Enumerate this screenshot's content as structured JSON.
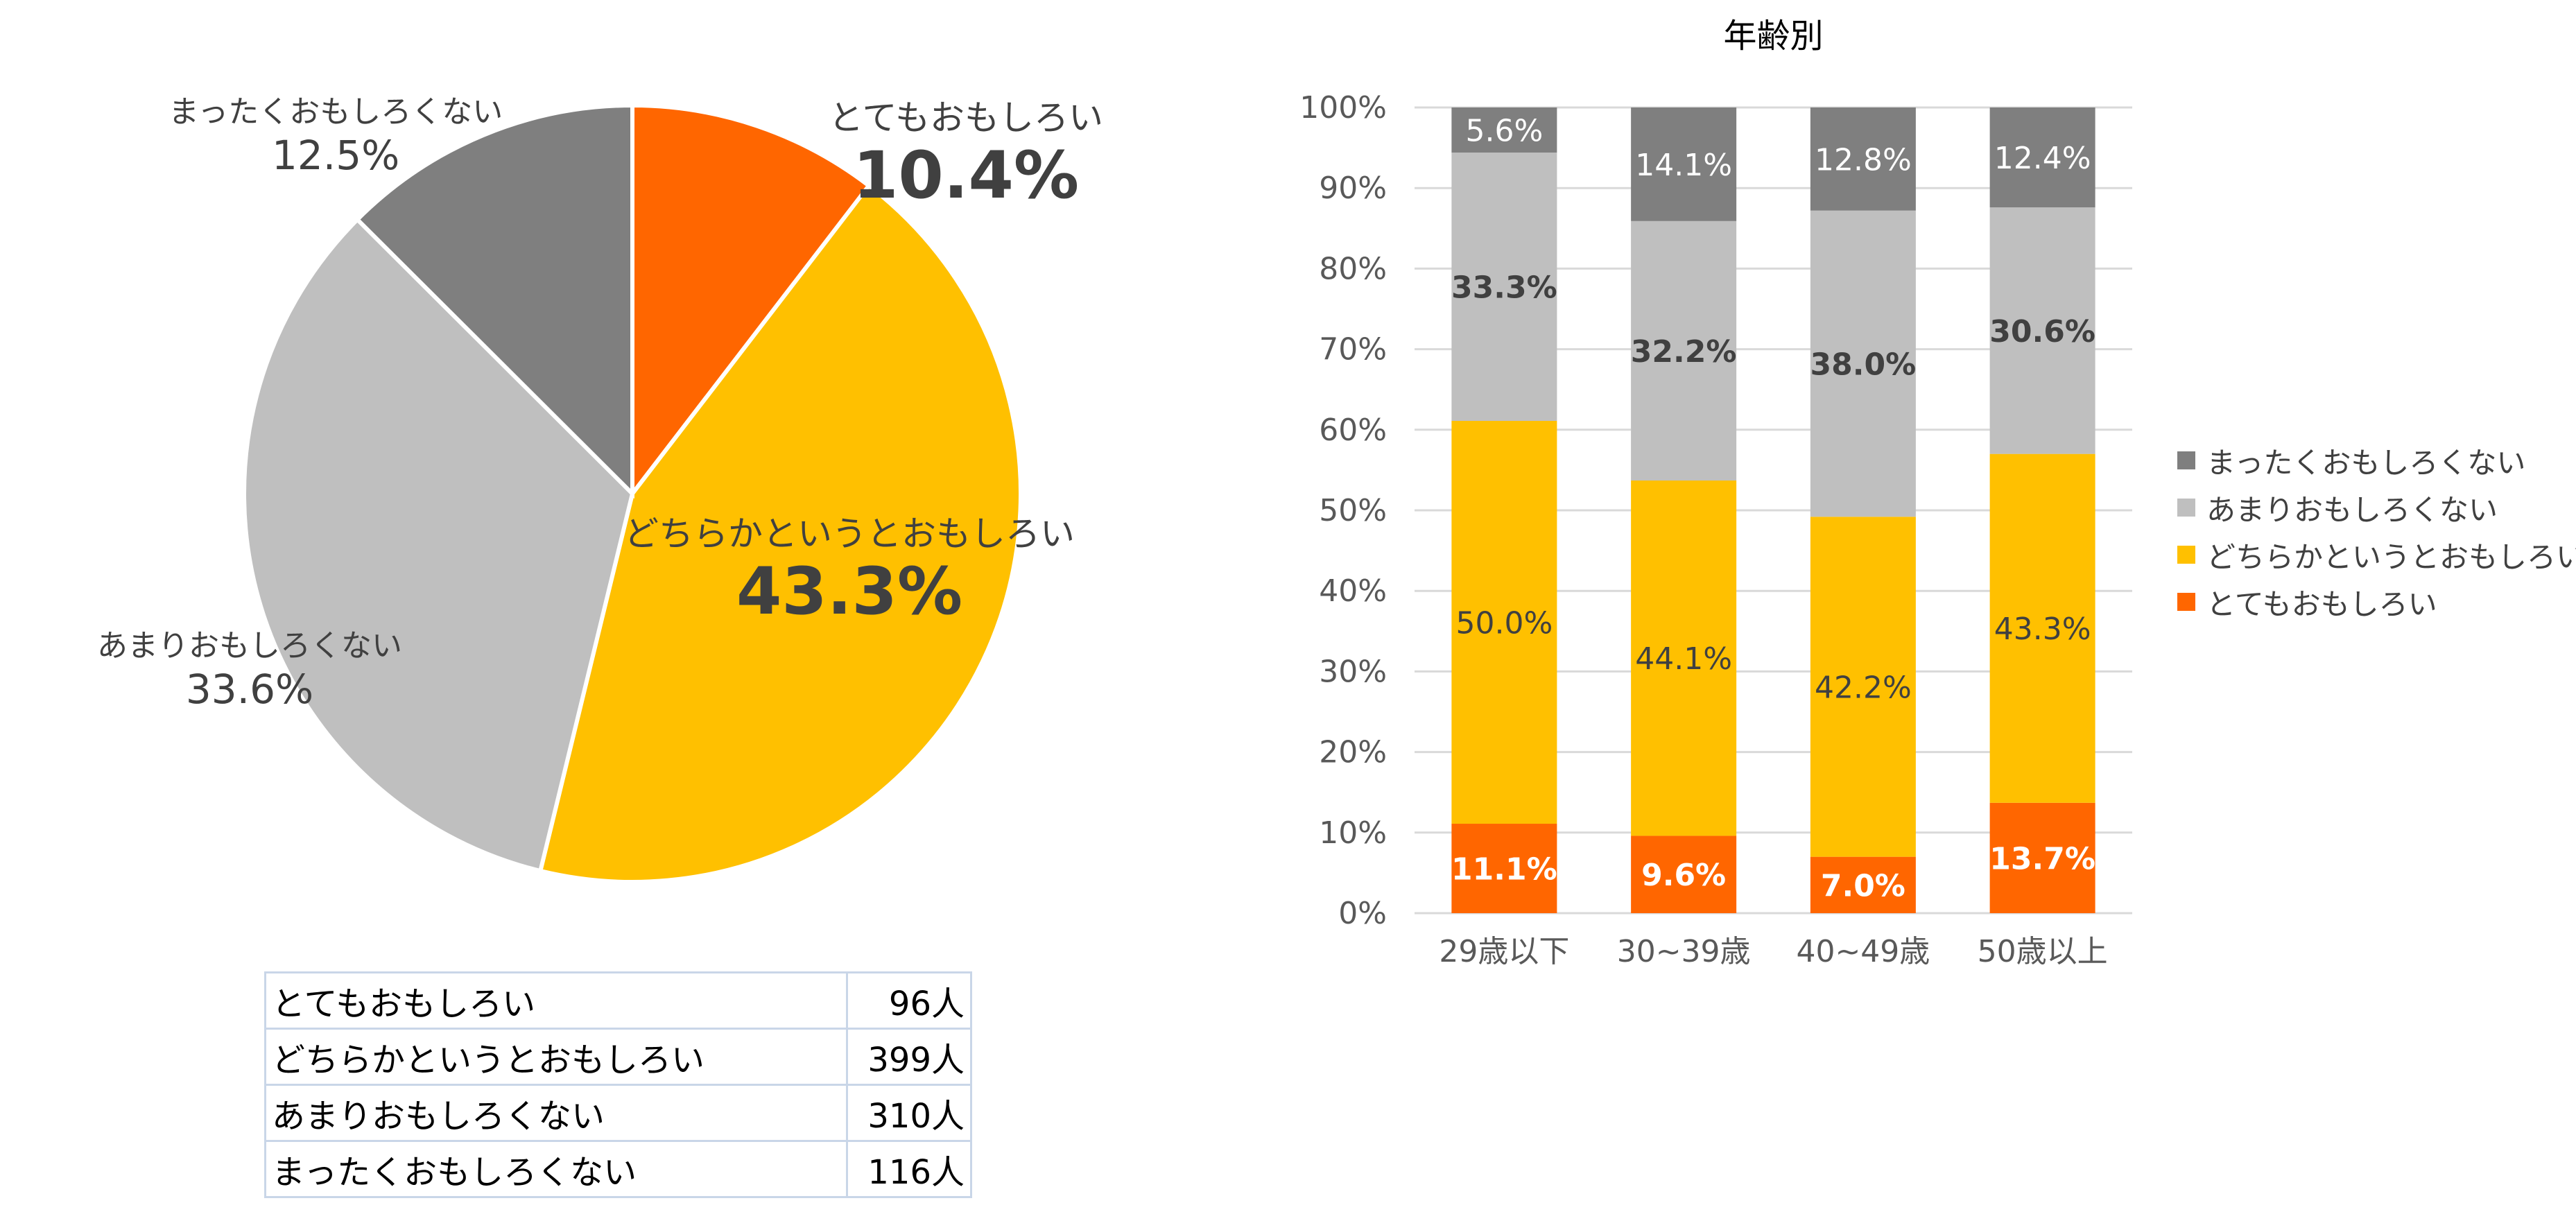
{
  "colors": {
    "very_interesting": "#FF6600",
    "somewhat_interesting": "#FFC000",
    "not_very_interesting": "#BFBFBF",
    "not_interesting_at_all": "#7F7F7F"
  },
  "chart_data": [
    {
      "type": "pie",
      "title": "",
      "slices": [
        {
          "label": "とてもおもしろい",
          "value": 10.4,
          "display": "10.4%",
          "color": "#FF6600"
        },
        {
          "label": "どちらかというとおもしろい",
          "value": 43.3,
          "display": "43.3%",
          "color": "#FFC000"
        },
        {
          "label": "あまりおもしろくない",
          "value": 33.6,
          "display": "33.6%",
          "color": "#BFBFBF"
        },
        {
          "label": "まったくおもしろくない",
          "value": 12.5,
          "display": "12.5%",
          "color": "#7F7F7F"
        }
      ]
    },
    {
      "type": "bar",
      "stacked": true,
      "title": "年齢別",
      "categories": [
        "29歳以下",
        "30~39歳",
        "40~49歳",
        "50歳以上"
      ],
      "ylim": [
        0,
        100
      ],
      "yticks": [
        "0%",
        "10%",
        "20%",
        "30%",
        "40%",
        "50%",
        "60%",
        "70%",
        "80%",
        "90%",
        "100%"
      ],
      "grid": true,
      "legend_position": "right",
      "series": [
        {
          "name": "とてもおもしろい",
          "color": "#FF6600",
          "values": [
            11.1,
            9.6,
            7.0,
            13.7
          ],
          "labels": [
            "11.1%",
            "9.6%",
            "7.0%",
            "13.7%"
          ]
        },
        {
          "name": "どちらかというとおもしろい",
          "color": "#FFC000",
          "values": [
            50.0,
            44.1,
            42.2,
            43.3
          ],
          "labels": [
            "50.0%",
            "44.1%",
            "42.2%",
            "43.3%"
          ]
        },
        {
          "name": "あまりおもしろくない",
          "color": "#BFBFBF",
          "values": [
            33.3,
            32.2,
            38.0,
            30.6
          ],
          "labels": [
            "33.3%",
            "32.2%",
            "38.0%",
            "30.6%"
          ]
        },
        {
          "name": "まったくおもしろくない",
          "color": "#7F7F7F",
          "values": [
            5.6,
            14.1,
            12.8,
            12.4
          ],
          "labels": [
            "5.6%",
            "14.1%",
            "12.8%",
            "12.4%"
          ]
        }
      ]
    }
  ],
  "count_table": {
    "rows": [
      {
        "label": "とてもおもしろい",
        "count": "96人"
      },
      {
        "label": "どちらかというとおもしろい",
        "count": "399人"
      },
      {
        "label": "あまりおもしろくない",
        "count": "310人"
      },
      {
        "label": "まったくおもしろくない",
        "count": "116人"
      }
    ]
  }
}
